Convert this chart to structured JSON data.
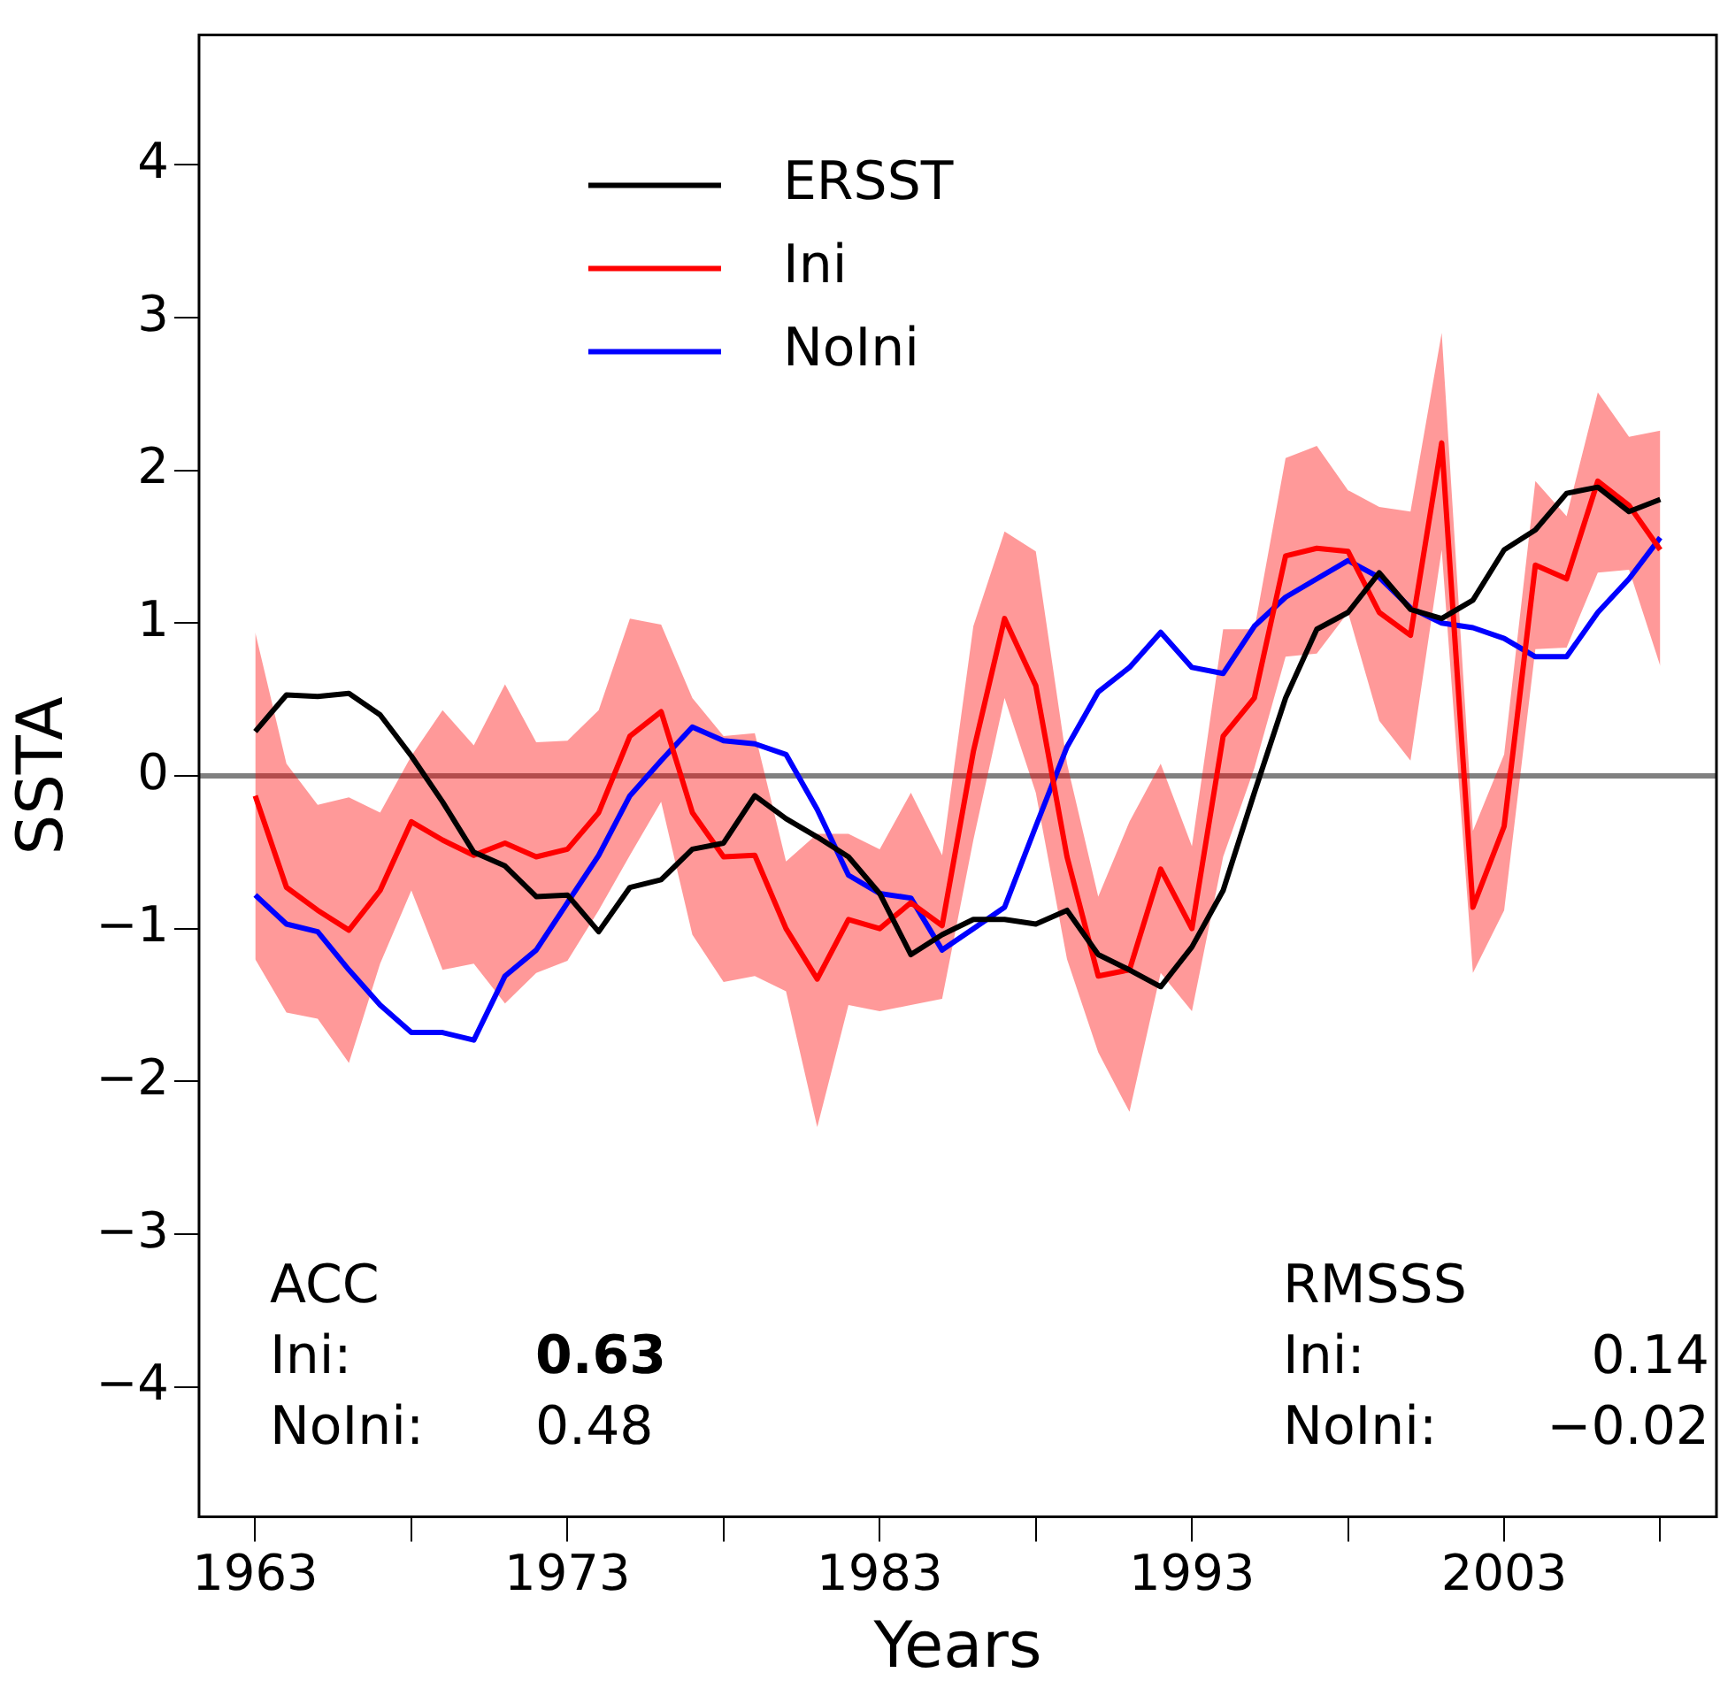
{
  "chart_data": {
    "type": "line",
    "xlabel": "Years",
    "ylabel": "SSTA",
    "legend": "top",
    "grid": false,
    "x": [
      1963,
      1964,
      1965,
      1966,
      1967,
      1968,
      1969,
      1970,
      1971,
      1972,
      1973,
      1974,
      1975,
      1976,
      1977,
      1978,
      1979,
      1980,
      1981,
      1982,
      1983,
      1984,
      1985,
      1986,
      1987,
      1988,
      1989,
      1990,
      1991,
      1992,
      1993,
      1994,
      1995,
      1996,
      1997,
      1998,
      1999,
      2000,
      2001,
      2002,
      2003,
      2004,
      2005,
      2006,
      2007,
      2008
    ],
    "xlim": [
      1961.2,
      2009.8
    ],
    "xticks": [
      1963,
      {
        "value": 1968,
        "label": null
      },
      1973,
      {
        "value": 1978,
        "label": null
      },
      1983,
      {
        "value": 1988,
        "label": null
      },
      1993,
      {
        "value": 1998,
        "label": null
      },
      2003,
      {
        "value": 2008,
        "label": null
      }
    ],
    "ylim": [
      -4.85,
      4.85
    ],
    "yticks": [
      {
        "value": -4,
        "label": "−4"
      },
      {
        "value": -3,
        "label": "−3"
      },
      {
        "value": -2,
        "label": "−2"
      },
      {
        "value": -1,
        "label": "−1"
      },
      0,
      1,
      2,
      3,
      4
    ],
    "ref_lines": [
      {
        "axis": "y",
        "value": 0,
        "color": "#808080"
      }
    ],
    "series": [
      {
        "name": "ERSST",
        "color": "#000000",
        "values": [
          0.29,
          0.53,
          0.52,
          0.54,
          0.4,
          0.13,
          -0.17,
          -0.5,
          -0.59,
          -0.79,
          -0.78,
          -1.02,
          -0.73,
          -0.68,
          -0.48,
          -0.44,
          -0.13,
          -0.28,
          -0.4,
          -0.53,
          -0.77,
          -1.17,
          -1.04,
          -0.94,
          -0.94,
          -0.97,
          -0.88,
          -1.17,
          -1.27,
          -1.38,
          -1.12,
          -0.75,
          -0.11,
          0.51,
          0.96,
          1.07,
          1.33,
          1.09,
          1.03,
          1.15,
          1.48,
          1.61,
          1.85,
          1.89,
          1.73,
          1.81
        ]
      },
      {
        "name": "Ini",
        "color": "#ff0000",
        "values": [
          -0.13,
          -0.73,
          -0.88,
          -1.01,
          -0.75,
          -0.3,
          -0.42,
          -0.52,
          -0.44,
          -0.53,
          -0.48,
          -0.24,
          0.26,
          0.42,
          -0.24,
          -0.53,
          -0.52,
          -1.0,
          -1.33,
          -0.94,
          -1.0,
          -0.83,
          -0.98,
          0.16,
          1.03,
          0.59,
          -0.53,
          -1.31,
          -1.27,
          -0.61,
          -1.0,
          0.26,
          0.51,
          1.44,
          1.49,
          1.47,
          1.07,
          0.92,
          2.18,
          -0.86,
          -0.33,
          1.38,
          1.29,
          1.93,
          1.77,
          1.48
        ],
        "upper": [
          0.94,
          0.08,
          -0.19,
          -0.14,
          -0.24,
          0.13,
          0.43,
          0.2,
          0.6,
          0.22,
          0.23,
          0.43,
          1.03,
          0.99,
          0.51,
          0.26,
          0.28,
          -0.56,
          -0.38,
          -0.38,
          -0.48,
          -0.11,
          -0.52,
          0.98,
          1.6,
          1.47,
          0.08,
          -0.79,
          -0.3,
          0.08,
          -0.46,
          0.96,
          0.96,
          2.08,
          2.16,
          1.87,
          1.76,
          1.73,
          2.9,
          -0.36,
          0.14,
          1.93,
          1.7,
          2.51,
          2.22,
          2.26
        ],
        "lower": [
          -1.2,
          -1.55,
          -1.59,
          -1.88,
          -1.23,
          -0.75,
          -1.27,
          -1.23,
          -1.49,
          -1.29,
          -1.21,
          -0.88,
          -0.52,
          -0.17,
          -1.04,
          -1.35,
          -1.31,
          -1.41,
          -2.3,
          -1.5,
          -1.54,
          -1.5,
          -1.46,
          -0.42,
          0.51,
          -0.11,
          -1.2,
          -1.81,
          -2.2,
          -1.29,
          -1.54,
          -0.53,
          0.05,
          0.78,
          0.8,
          1.07,
          0.36,
          0.1,
          1.48,
          -1.29,
          -0.88,
          0.83,
          0.84,
          1.33,
          1.35,
          0.72
        ]
      },
      {
        "name": "NoIni",
        "color": "#0000ff",
        "values": [
          -0.78,
          -0.97,
          -1.02,
          -1.27,
          -1.5,
          -1.68,
          -1.68,
          -1.73,
          -1.31,
          -1.14,
          -0.83,
          -0.52,
          -0.13,
          0.1,
          0.32,
          0.23,
          0.21,
          0.14,
          -0.22,
          -0.65,
          -0.77,
          -0.8,
          -1.14,
          -1.0,
          -0.86,
          -0.33,
          0.19,
          0.55,
          0.71,
          0.94,
          0.71,
          0.67,
          0.98,
          1.17,
          1.29,
          1.41,
          1.3,
          1.1,
          1.0,
          0.97,
          0.9,
          0.78,
          0.78,
          1.07,
          1.29,
          1.56
        ]
      }
    ],
    "annotations": [
      "ACC",
      "Ini:",
      "0.63",
      "NoIni:",
      "0.48",
      "RMSSS",
      "Ini:",
      "0.14",
      "NoIni:",
      "−0.02"
    ]
  }
}
